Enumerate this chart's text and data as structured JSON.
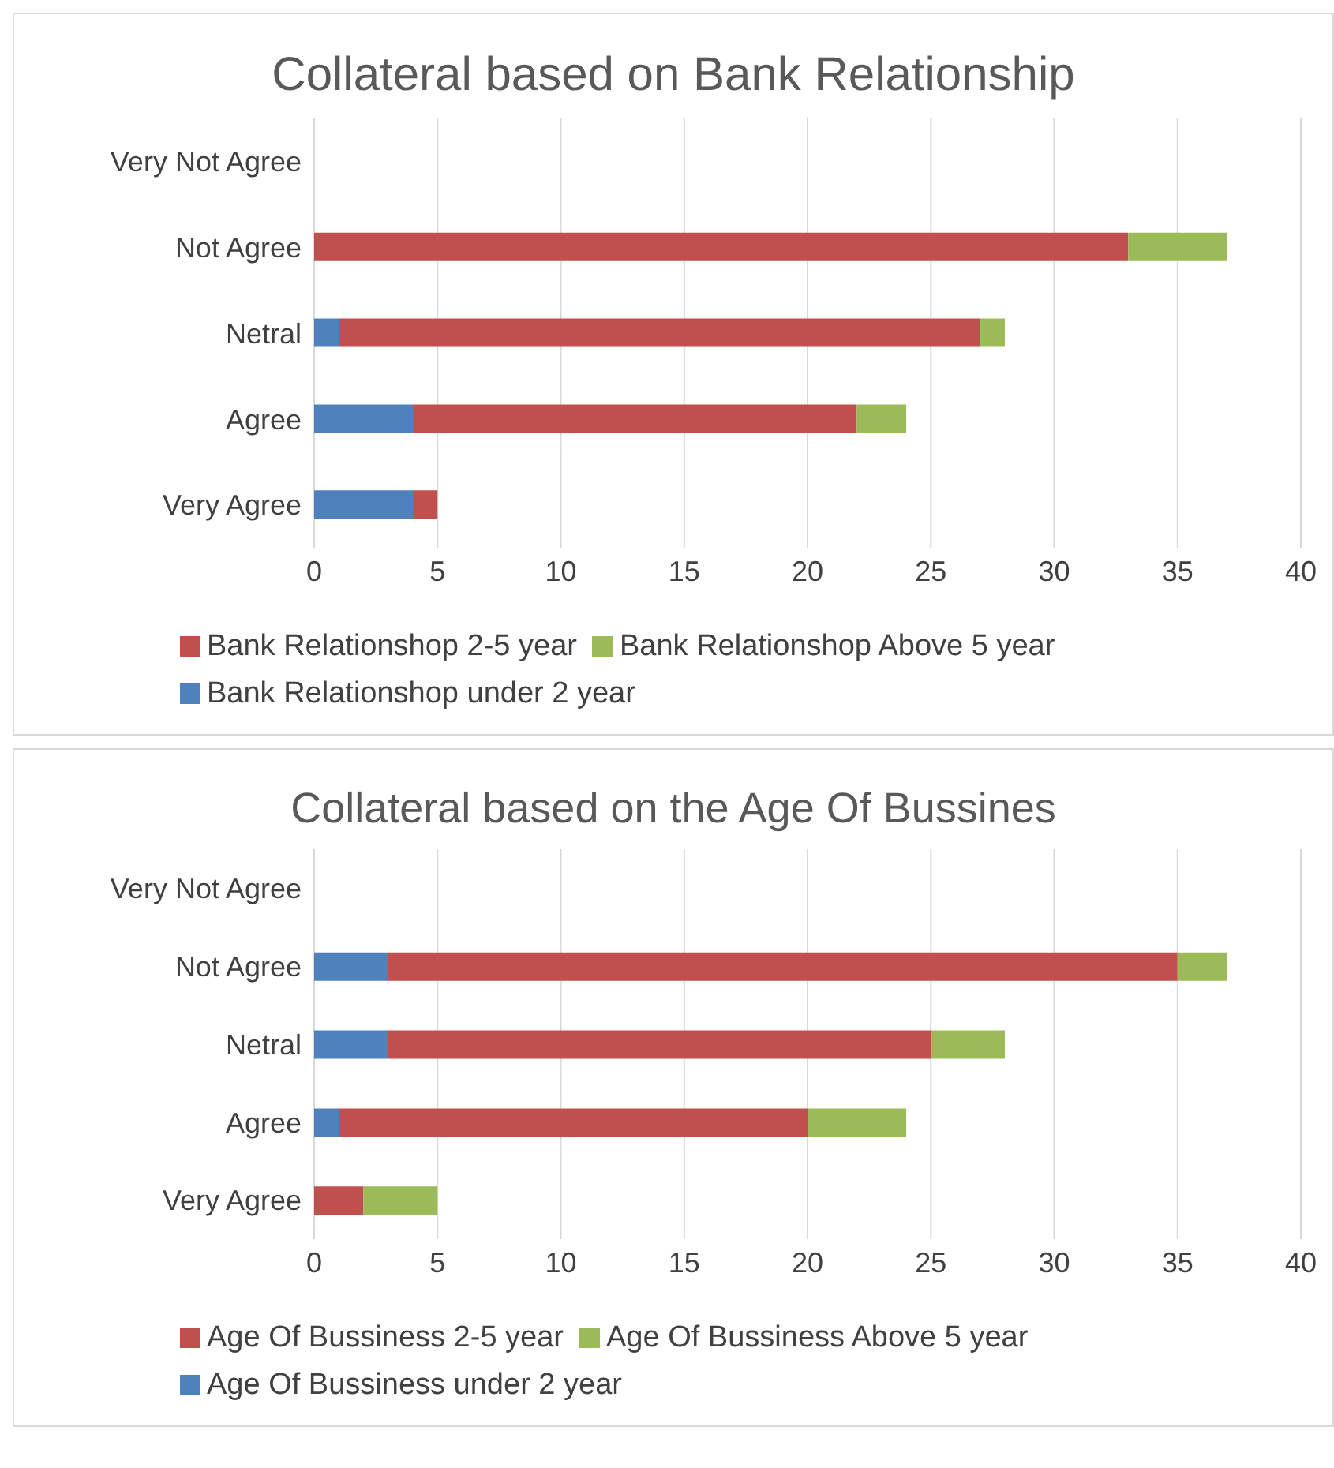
{
  "chart_data": [
    {
      "type": "bar",
      "orientation": "horizontal",
      "stacked": true,
      "title": "Collateral based on Bank Relationship",
      "categories": [
        "Very Not Agree",
        "Not Agree",
        "Netral",
        "Agree",
        "Very Agree"
      ],
      "series": [
        {
          "name": "Bank Relationshop under 2 year",
          "color": "#4f81bd",
          "values": [
            0,
            0,
            1,
            4,
            4
          ]
        },
        {
          "name": "Bank Relationshop 2-5 year",
          "color": "#c0504d",
          "values": [
            0,
            33,
            26,
            18,
            1
          ]
        },
        {
          "name": "Bank Relationshop Above 5 year",
          "color": "#9bbb59",
          "values": [
            0,
            4,
            1,
            2,
            0
          ]
        }
      ],
      "xlim": [
        0,
        40
      ],
      "xticks": [
        0,
        5,
        10,
        15,
        20,
        25,
        30,
        35,
        40
      ],
      "grid": "x",
      "legend": "bottom"
    },
    {
      "type": "bar",
      "orientation": "horizontal",
      "stacked": true,
      "title": "Collateral based on the Age Of Bussines",
      "categories": [
        "Very Not Agree",
        "Not Agree",
        "Netral",
        "Agree",
        "Very Agree"
      ],
      "series": [
        {
          "name": "Age Of Bussiness under 2 year",
          "color": "#4f81bd",
          "values": [
            0,
            3,
            3,
            1,
            0
          ]
        },
        {
          "name": "Age Of Bussiness 2-5 year",
          "color": "#c0504d",
          "values": [
            0,
            32,
            22,
            19,
            2
          ]
        },
        {
          "name": "Age Of Bussiness Above 5 year",
          "color": "#9bbb59",
          "values": [
            0,
            2,
            3,
            4,
            3
          ]
        }
      ],
      "xlim": [
        0,
        40
      ],
      "xticks": [
        0,
        5,
        10,
        15,
        20,
        25,
        30,
        35,
        40
      ],
      "grid": "x",
      "legend": "bottom"
    }
  ]
}
